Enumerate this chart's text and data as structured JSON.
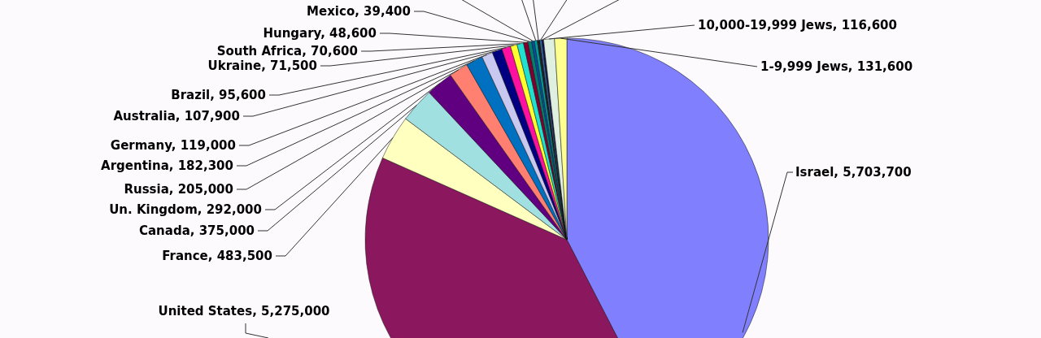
{
  "chart_data": {
    "type": "pie",
    "categories": [
      "Israel",
      "United States",
      "France",
      "Canada",
      "Un. Kingdom",
      "Russia",
      "Argentina",
      "Germany",
      "Australia",
      "Brazil",
      "Ukraine",
      "South Africa",
      "Hungary",
      "Mexico",
      null,
      null,
      null,
      null,
      null,
      "10,000-19,999 Jews",
      "1-9,999 Jews"
    ],
    "values": [
      5703700,
      5275000,
      483500,
      375000,
      292000,
      205000,
      182300,
      119000,
      107900,
      95600,
      71500,
      70600,
      48600,
      39400,
      30000,
      30000,
      28000,
      20000,
      20000,
      116600,
      131600
    ],
    "value_labels": [
      "5,703,700",
      "5,275,000",
      "483,500",
      "375,000",
      "292,000",
      "205,000",
      "182,300",
      "119,000",
      "107,900",
      "95,600",
      "71,500",
      "70,600",
      "48,600",
      "39,400",
      null,
      null,
      null,
      null,
      null,
      "116,600",
      "131,600"
    ],
    "colors": [
      "#8080ff",
      "#8b185e",
      "#ffffc0",
      "#a0e0e0",
      "#600080",
      "#ff8070",
      "#0070c0",
      "#c8c8f0",
      "#000080",
      "#ff10a0",
      "#ffff30",
      "#20e0d0",
      "#800030",
      "#008070",
      "#0050a0",
      "#00a0a0",
      "#202020",
      "#3070b0",
      "#101050",
      "#e0f0e0",
      "#ffff90"
    ]
  }
}
